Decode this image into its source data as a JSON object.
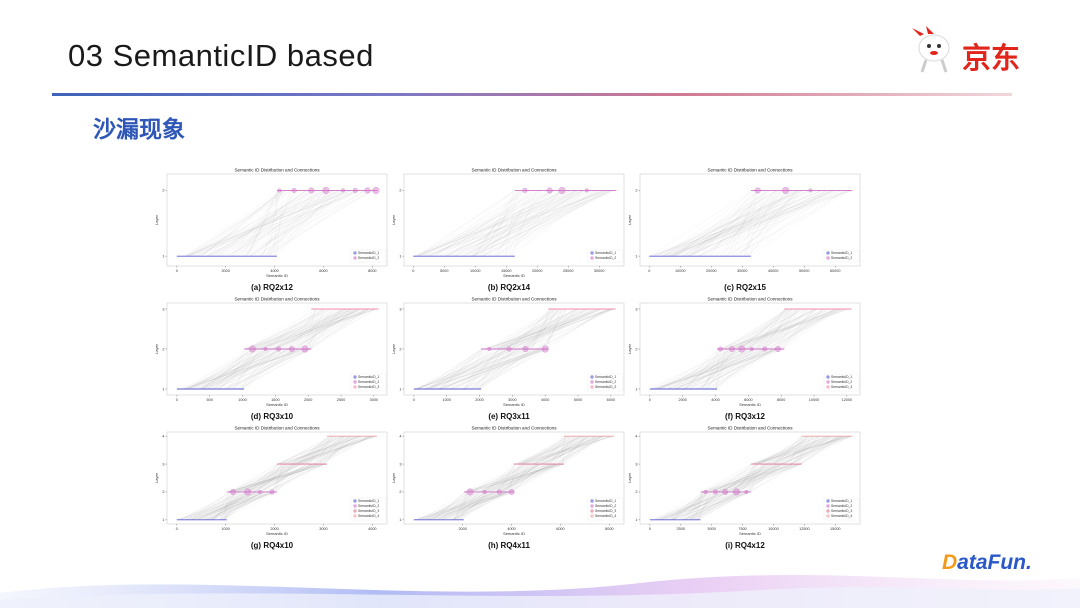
{
  "slide": {
    "title": "03 SemanticID based",
    "subtitle": "沙漏现象",
    "brand": "京东",
    "datafun": {
      "accent": "D",
      "rest": "ataFun."
    }
  },
  "chart_data": [
    {
      "type": "scatter",
      "caption": "(a) RQ2x12",
      "title": "Semantic ID Distribution and Connections",
      "xlabel": "Semantic ID",
      "ylabel": "Layer",
      "xticks": [
        0,
        2000,
        4000,
        6000,
        8000
      ],
      "xlim": [
        -400,
        8600
      ],
      "yticks": [
        1,
        2
      ],
      "ylim": [
        0.85,
        2.25
      ],
      "legend": [
        "SemanticID_1",
        "SemanticID_2"
      ],
      "legend_position": "lower-right",
      "layers": [
        {
          "layer": 1,
          "range": [
            0,
            4096
          ],
          "color": "#5a5ad2"
        },
        {
          "layer": 2,
          "range": [
            4096,
            8192
          ],
          "color": "#d070c8",
          "clusters": [
            4200,
            4800,
            5500,
            6100,
            6800,
            7300,
            7800,
            8150
          ]
        }
      ]
    },
    {
      "type": "scatter",
      "caption": "(b) RQ2x14",
      "title": "Semantic ID Distribution and Connections",
      "xlabel": "Semantic ID",
      "ylabel": "Layer",
      "xticks": [
        0,
        5000,
        10000,
        15000,
        20000,
        25000,
        30000
      ],
      "xlim": [
        -1500,
        34000
      ],
      "yticks": [
        1,
        2
      ],
      "ylim": [
        0.85,
        2.25
      ],
      "legend": [
        "SemanticID_1",
        "SemanticID_2"
      ],
      "legend_position": "lower-right",
      "layers": [
        {
          "layer": 1,
          "range": [
            0,
            16384
          ],
          "color": "#5a5ad2"
        },
        {
          "layer": 2,
          "range": [
            16384,
            32768
          ],
          "color": "#d070c8",
          "clusters": [
            18000,
            22000,
            24000,
            28000
          ]
        }
      ]
    },
    {
      "type": "scatter",
      "caption": "(c) RQ2x15",
      "title": "Semantic ID Distribution and Connections",
      "xlabel": "",
      "ylabel": "Layer",
      "xticks": [
        0,
        10000,
        20000,
        30000,
        40000,
        50000,
        60000
      ],
      "xlim": [
        -3000,
        68000
      ],
      "yticks": [
        1,
        2
      ],
      "ylim": [
        0.85,
        2.25
      ],
      "legend": [
        "SemanticID_1",
        "SemanticID_2"
      ],
      "legend_position": "lower-right",
      "layers": [
        {
          "layer": 1,
          "range": [
            0,
            32768
          ],
          "color": "#5a5ad2"
        },
        {
          "layer": 2,
          "range": [
            32768,
            65536
          ],
          "color": "#d070c8",
          "clusters": [
            35000,
            44000,
            52000
          ]
        }
      ]
    },
    {
      "type": "scatter",
      "caption": "(d) RQ3x10",
      "title": "Semantic ID Distribution and Connections",
      "xlabel": "Semantic ID",
      "ylabel": "Layer",
      "xticks": [
        0,
        500,
        1000,
        1500,
        2000,
        2500,
        3000
      ],
      "xlim": [
        -150,
        3200
      ],
      "yticks": [
        1,
        2,
        3
      ],
      "ylim": [
        0.85,
        3.15
      ],
      "legend": [
        "SemanticID_1",
        "SemanticID_2",
        "SemanticID_3"
      ],
      "legend_position": "lower-right",
      "layers": [
        {
          "layer": 1,
          "range": [
            0,
            1024
          ],
          "color": "#5a5ad2"
        },
        {
          "layer": 2,
          "range": [
            1024,
            2048
          ],
          "color": "#d070c8",
          "clusters": [
            1150,
            1350,
            1550,
            1750,
            1950
          ]
        },
        {
          "layer": 3,
          "range": [
            2048,
            3072
          ],
          "color": "#f08ca8"
        }
      ]
    },
    {
      "type": "scatter",
      "caption": "(e) RQ3x11",
      "title": "Semantic ID Distribution and Connections",
      "xlabel": "Semantic ID",
      "ylabel": "Layer",
      "xticks": [
        0,
        1000,
        2000,
        3000,
        4000,
        5000,
        6000
      ],
      "xlim": [
        -300,
        6400
      ],
      "yticks": [
        1,
        2,
        3
      ],
      "ylim": [
        0.85,
        3.15
      ],
      "legend": [
        "SemanticID_1",
        "SemanticID_2",
        "SemanticID_3"
      ],
      "legend_position": "lower-right",
      "layers": [
        {
          "layer": 1,
          "range": [
            0,
            2048
          ],
          "color": "#5a5ad2"
        },
        {
          "layer": 2,
          "range": [
            2048,
            4096
          ],
          "color": "#d070c8",
          "clusters": [
            2300,
            2900,
            3400,
            4000
          ]
        },
        {
          "layer": 3,
          "range": [
            4096,
            6144
          ],
          "color": "#f08ca8"
        }
      ]
    },
    {
      "type": "scatter",
      "caption": "(f) RQ3x12",
      "title": "Semantic ID Distribution and Connections",
      "xlabel": "Semantic ID",
      "ylabel": "Layer",
      "xticks": [
        0,
        2000,
        4000,
        6000,
        8000,
        10000,
        12000
      ],
      "xlim": [
        -600,
        12800
      ],
      "yticks": [
        1,
        2,
        3
      ],
      "ylim": [
        0.85,
        3.15
      ],
      "legend": [
        "SemanticID_1",
        "SemanticID_2",
        "SemanticID_3"
      ],
      "legend_position": "lower-right",
      "layers": [
        {
          "layer": 1,
          "range": [
            0,
            4096
          ],
          "color": "#5a5ad2"
        },
        {
          "layer": 2,
          "range": [
            4096,
            8192
          ],
          "color": "#d070c8",
          "clusters": [
            4300,
            5000,
            5600,
            6200,
            7000,
            7800
          ]
        },
        {
          "layer": 3,
          "range": [
            8192,
            12288
          ],
          "color": "#f08ca8"
        }
      ]
    },
    {
      "type": "scatter",
      "caption": "(g) RQ4x10",
      "title": "Semantic ID Distribution and Connections",
      "xlabel": "Semantic ID",
      "ylabel": "Layer",
      "xticks": [
        0,
        1000,
        2000,
        3000,
        4000
      ],
      "xlim": [
        -200,
        4300
      ],
      "yticks": [
        1,
        2,
        3,
        4
      ],
      "ylim": [
        0.85,
        4.15
      ],
      "legend": [
        "SemanticID_1",
        "SemanticID_2",
        "SemanticID_3",
        "SemanticID_4"
      ],
      "legend_position": "lower-right",
      "layers": [
        {
          "layer": 1,
          "range": [
            0,
            1024
          ],
          "color": "#5a5ad2"
        },
        {
          "layer": 2,
          "range": [
            1024,
            2048
          ],
          "color": "#d070c8",
          "clusters": [
            1150,
            1450,
            1700,
            1950
          ]
        },
        {
          "layer": 3,
          "range": [
            2048,
            3072
          ],
          "color": "#e07090"
        },
        {
          "layer": 4,
          "range": [
            3072,
            4096
          ],
          "color": "#f0a0a0"
        }
      ]
    },
    {
      "type": "scatter",
      "caption": "(h) RQ4x11",
      "title": "Semantic ID Distribution and Connections",
      "xlabel": "Semantic ID",
      "ylabel": "Layer",
      "xticks": [
        2000,
        4000,
        6000,
        8000
      ],
      "xlim": [
        -400,
        8600
      ],
      "yticks": [
        1,
        2,
        3,
        4
      ],
      "ylim": [
        0.85,
        4.15
      ],
      "legend": [
        "SemanticID_1",
        "SemanticID_2",
        "SemanticID_3",
        "SemanticID_4"
      ],
      "legend_position": "lower-right",
      "layers": [
        {
          "layer": 1,
          "range": [
            0,
            2048
          ],
          "color": "#5a5ad2"
        },
        {
          "layer": 2,
          "range": [
            2048,
            4096
          ],
          "color": "#d070c8",
          "clusters": [
            2300,
            2900,
            3500,
            4000
          ]
        },
        {
          "layer": 3,
          "range": [
            4096,
            6144
          ],
          "color": "#e07090"
        },
        {
          "layer": 4,
          "range": [
            6144,
            8192
          ],
          "color": "#f0a0a0"
        }
      ]
    },
    {
      "type": "scatter",
      "caption": "(i) RQ4x12",
      "title": "Semantic ID Distribution and Connections",
      "xlabel": "Semantic ID",
      "ylabel": "Layer",
      "xticks": [
        0,
        2500,
        5000,
        7500,
        10000,
        12500,
        15000
      ],
      "xlim": [
        -800,
        17000
      ],
      "yticks": [
        1,
        2,
        3,
        4
      ],
      "ylim": [
        0.85,
        4.15
      ],
      "legend": [
        "SemanticID_1",
        "SemanticID_2",
        "SemanticID_3",
        "SemanticID_4"
      ],
      "legend_position": "lower-right",
      "layers": [
        {
          "layer": 1,
          "range": [
            0,
            4096
          ],
          "color": "#5a5ad2"
        },
        {
          "layer": 2,
          "range": [
            4096,
            8192
          ],
          "color": "#d070c8",
          "clusters": [
            4500,
            5300,
            6100,
            7000,
            7800
          ]
        },
        {
          "layer": 3,
          "range": [
            8192,
            12288
          ],
          "color": "#e07090"
        },
        {
          "layer": 4,
          "range": [
            12288,
            16384
          ],
          "color": "#f0a0a0"
        }
      ]
    }
  ]
}
